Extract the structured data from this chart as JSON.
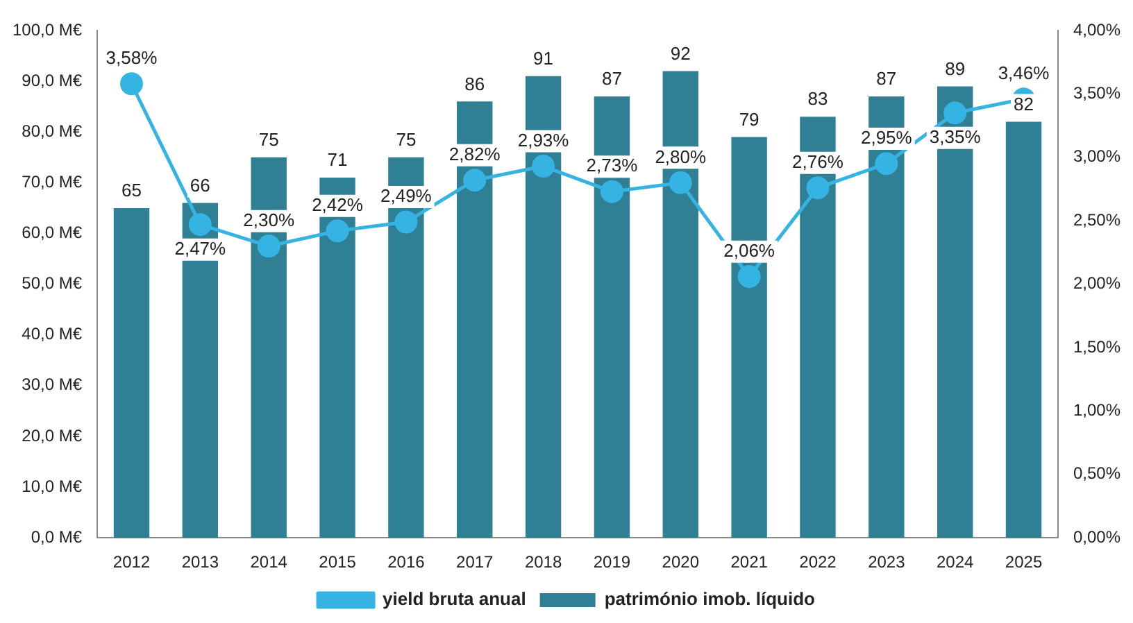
{
  "chart_data": {
    "type": "bar",
    "categories": [
      "2012",
      "2013",
      "2014",
      "2015",
      "2016",
      "2017",
      "2018",
      "2019",
      "2020",
      "2021",
      "2022",
      "2023",
      "2024",
      "2025"
    ],
    "series": [
      {
        "name": "património imob. líquido",
        "color": "#2f7f95",
        "values": [
          65,
          66,
          75,
          71,
          75,
          86,
          91,
          87,
          92,
          79,
          83,
          87,
          89,
          82
        ],
        "value_labels": [
          "65",
          "66",
          "75",
          "71",
          "75",
          "86",
          "91",
          "87",
          "92",
          "79",
          "83",
          "87",
          "89",
          "82"
        ]
      },
      {
        "name": "yield bruta anual",
        "type": "line",
        "axis": "y2",
        "color": "#35b3e2",
        "marker": "circle",
        "values": [
          3.58,
          2.47,
          2.3,
          2.42,
          2.49,
          2.82,
          2.93,
          2.73,
          2.8,
          2.06,
          2.76,
          2.95,
          3.35,
          3.46
        ],
        "value_labels": [
          "3,58%",
          "2,47%",
          "2,30%",
          "2,42%",
          "2,49%",
          "2,82%",
          "2,93%",
          "2,73%",
          "2,80%",
          "2,06%",
          "2,76%",
          "2,95%",
          "3,35%",
          "3,46%"
        ]
      }
    ],
    "ylim": [
      0,
      100
    ],
    "yticks": [
      {
        "value": 0,
        "label": "0,0 M€"
      },
      {
        "value": 10,
        "label": "10,0 M€"
      },
      {
        "value": 20,
        "label": "20,0 M€"
      },
      {
        "value": 30,
        "label": "30,0 M€"
      },
      {
        "value": 40,
        "label": "40,0 M€"
      },
      {
        "value": 50,
        "label": "50,0 M€"
      },
      {
        "value": 60,
        "label": "60,0 M€"
      },
      {
        "value": 70,
        "label": "70,0 M€"
      },
      {
        "value": 80,
        "label": "80,0 M€"
      },
      {
        "value": 90,
        "label": "90,0 M€"
      },
      {
        "value": 100,
        "label": "100,0 M€"
      }
    ],
    "y2lim": [
      0,
      4
    ],
    "y2ticks": [
      {
        "value": 0,
        "label": "0,00%"
      },
      {
        "value": 0.5,
        "label": "0,50%"
      },
      {
        "value": 1,
        "label": "1,00%"
      },
      {
        "value": 1.5,
        "label": "1,50%"
      },
      {
        "value": 2,
        "label": "2,00%"
      },
      {
        "value": 2.5,
        "label": "2,50%"
      },
      {
        "value": 3,
        "label": "3,00%"
      },
      {
        "value": 3.5,
        "label": "3,50%"
      },
      {
        "value": 4,
        "label": "4,00%"
      }
    ],
    "grid": false,
    "legend": "bottom"
  }
}
